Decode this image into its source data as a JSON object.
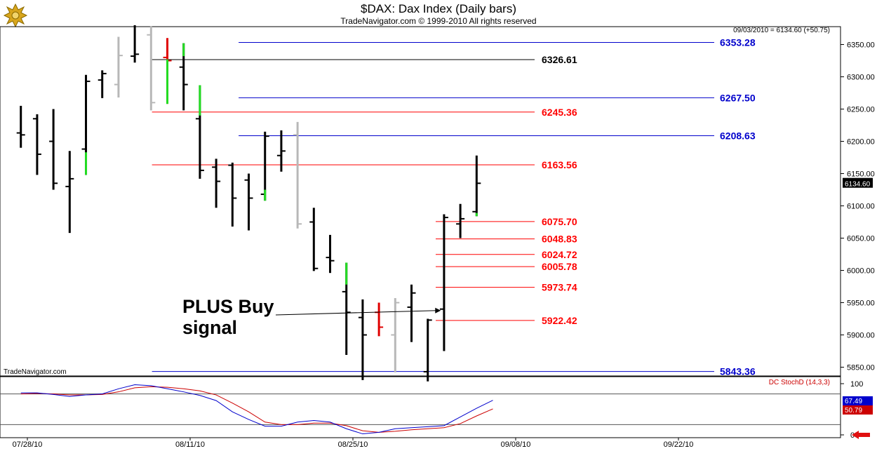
{
  "chart_data": {
    "type": "ohlc",
    "title": "$DAX:  Dax Index  (Daily bars)",
    "subtitle": "TradeNavigator.com © 1999-2010 All rights reserved",
    "last_quote": "09/03/2010 = 6134.60 (+50.75)",
    "watermark": "TradeNavigator.com",
    "current_price": 6134.6,
    "current_price_label": "6134.60",
    "y_axis": {
      "ticks": [
        5850,
        5900,
        5950,
        6000,
        6050,
        6100,
        6150,
        6200,
        6250,
        6300,
        6350
      ],
      "tick_labels": [
        "5850.00",
        "5900.00",
        "5950.00",
        "6000.00",
        "6050.00",
        "6100.00",
        "6150.00",
        "6200.00",
        "6250.00",
        "6300.00",
        "6350.00"
      ],
      "ylim": [
        5825,
        6378
      ]
    },
    "x_axis": {
      "tick_labels": [
        "07/28/10",
        "08/11/10",
        "08/25/10",
        "09/08/10",
        "09/22/10"
      ],
      "tick_bar_index": [
        0,
        10,
        20,
        30,
        40
      ]
    },
    "bars": [
      {
        "i": -0.4,
        "o": 6213,
        "h": 6255,
        "l": 6190,
        "c": 6210,
        "color": "black"
      },
      {
        "i": 0.6,
        "o": 6235,
        "h": 6242,
        "l": 6148,
        "c": 6180,
        "color": "black"
      },
      {
        "i": 1.6,
        "o": 6200,
        "h": 6250,
        "l": 6125,
        "c": 6135,
        "color": "black"
      },
      {
        "i": 2.6,
        "o": 6130,
        "h": 6185,
        "l": 6058,
        "c": 6142,
        "color": "black"
      },
      {
        "i": 3.6,
        "o": 6188,
        "h": 6303,
        "l": 6148,
        "c": 6293,
        "color": "black",
        "green_lower": [
          6148,
          6183
        ]
      },
      {
        "i": 4.6,
        "o": 6295,
        "h": 6310,
        "l": 6267,
        "c": 6305,
        "color": "black"
      },
      {
        "i": 5.6,
        "o": 6288,
        "h": 6362,
        "l": 6268,
        "c": 6333,
        "color": "gray"
      },
      {
        "i": 6.6,
        "o": 6332,
        "h": 6380,
        "l": 6322,
        "c": 6335,
        "color": "black"
      },
      {
        "i": 7.6,
        "o": 6365,
        "h": 6378,
        "l": 6248,
        "c": 6260,
        "color": "gray"
      },
      {
        "i": 8.6,
        "o": 6330,
        "h": 6360,
        "l": 6258,
        "c": 6325,
        "color": "red",
        "green_lower": [
          6258,
          6327
        ]
      },
      {
        "i": 9.6,
        "o": 6315,
        "h": 6352,
        "l": 6248,
        "c": 6288,
        "color": "black",
        "green_upper": [
          6332,
          6352
        ]
      },
      {
        "i": 10.6,
        "o": 6235,
        "h": 6287,
        "l": 6142,
        "c": 6155,
        "color": "black",
        "green_upper": [
          6240,
          6287
        ]
      },
      {
        "i": 11.6,
        "o": 6160,
        "h": 6173,
        "l": 6097,
        "c": 6138,
        "color": "black"
      },
      {
        "i": 12.6,
        "o": 6163,
        "h": 6167,
        "l": 6068,
        "c": 6112,
        "color": "black"
      },
      {
        "i": 13.6,
        "o": 6140,
        "h": 6150,
        "l": 6062,
        "c": 6112,
        "color": "black"
      },
      {
        "i": 14.6,
        "o": 6118,
        "h": 6215,
        "l": 6108,
        "c": 6208,
        "color": "black",
        "green_lower": [
          6108,
          6125
        ]
      },
      {
        "i": 15.6,
        "o": 6178,
        "h": 6217,
        "l": 6153,
        "c": 6185,
        "color": "black"
      },
      {
        "i": 16.6,
        "o": 6210,
        "h": 6230,
        "l": 6065,
        "c": 6072,
        "color": "gray"
      },
      {
        "i": 17.6,
        "o": 6075,
        "h": 6097,
        "l": 5999,
        "c": 6003,
        "color": "black"
      },
      {
        "i": 18.6,
        "o": 6020,
        "h": 6055,
        "l": 5996,
        "c": 6015,
        "color": "black"
      },
      {
        "i": 19.6,
        "o": 5967,
        "h": 6012,
        "l": 5869,
        "c": 5935,
        "color": "black",
        "green_upper": [
          5978,
          6012
        ]
      },
      {
        "i": 20.6,
        "o": 5927,
        "h": 5955,
        "l": 5830,
        "c": 5900,
        "color": "black"
      },
      {
        "i": 21.6,
        "o": 5935,
        "h": 5950,
        "l": 5898,
        "c": 5912,
        "color": "red"
      },
      {
        "i": 22.6,
        "o": 5900,
        "h": 5957,
        "l": 5842,
        "c": 5950,
        "color": "gray"
      },
      {
        "i": 23.6,
        "o": 5943,
        "h": 5978,
        "l": 5889,
        "c": 5965,
        "color": "black"
      },
      {
        "i": 24.6,
        "o": 5843,
        "h": 5925,
        "l": 5828,
        "c": 5923,
        "color": "black"
      },
      {
        "i": 25.6,
        "o": 5940,
        "h": 6087,
        "l": 5875,
        "c": 6082,
        "color": "black"
      },
      {
        "i": 26.6,
        "o": 6072,
        "h": 6103,
        "l": 6050,
        "c": 6080,
        "color": "black"
      },
      {
        "i": 27.6,
        "o": 6091,
        "h": 6178,
        "l": 6084,
        "c": 6135,
        "color": "black",
        "green_lower": [
          6084,
          6089
        ]
      }
    ],
    "levels": [
      {
        "value": 6353.28,
        "label": "6353.28",
        "color": "#0000cc",
        "start": 13,
        "text_side": "right"
      },
      {
        "value": 6326.61,
        "label": "6326.61",
        "color": "#000000",
        "start": 8,
        "text_side": "mid"
      },
      {
        "value": 6267.5,
        "label": "6267.50",
        "color": "#0000cc",
        "start": 13,
        "text_side": "right"
      },
      {
        "value": 6245.36,
        "label": "6245.36",
        "color": "#ff0000",
        "start": 8,
        "text_side": "mid"
      },
      {
        "value": 6208.63,
        "label": "6208.63",
        "color": "#0000cc",
        "start": 13,
        "text_side": "right"
      },
      {
        "value": 6163.56,
        "label": "6163.56",
        "color": "#ff0000",
        "start": 8,
        "text_side": "mid"
      },
      {
        "value": 6075.7,
        "label": "6075.70",
        "color": "#ff0000",
        "start": 25,
        "text_side": "mid"
      },
      {
        "value": 6048.83,
        "label": "6048.83",
        "color": "#ff0000",
        "start": 25,
        "text_side": "mid"
      },
      {
        "value": 6024.72,
        "label": "6024.72",
        "color": "#ff0000",
        "start": 25,
        "text_side": "mid"
      },
      {
        "value": 6005.78,
        "label": "6005.78",
        "color": "#ff0000",
        "start": 25,
        "text_side": "mid"
      },
      {
        "value": 5973.74,
        "label": "5973.74",
        "color": "#ff0000",
        "start": 25,
        "text_side": "mid"
      },
      {
        "value": 5922.42,
        "label": "5922.42",
        "color": "#ff0000",
        "start": 25,
        "text_side": "mid"
      },
      {
        "value": 5843.36,
        "label": "5843.36",
        "color": "#0000cc",
        "start": 8,
        "text_side": "right"
      }
    ],
    "annotation": {
      "lines": [
        "PLUS Buy",
        "signal"
      ],
      "arrow_from": {
        "i": 12.9,
        "v": 5922
      },
      "arrow_to": {
        "i": 25.4,
        "v": 5940
      }
    },
    "stochastic": {
      "name": "DC StochD (14,3,3)",
      "ylim": [
        0,
        110
      ],
      "ticks": [
        0,
        100
      ],
      "tick_labels": [
        "0",
        "100"
      ],
      "ref_lines": [
        80,
        20
      ],
      "value_k": 67.49,
      "value_k_label": "67.49",
      "value_d": 50.79,
      "value_d_label": "50.79",
      "k_color": "#0000cc",
      "d_color": "#cc0000",
      "k": [
        [
          -0.4,
          82
        ],
        [
          0.6,
          82
        ],
        [
          1.6,
          79
        ],
        [
          2.6,
          75
        ],
        [
          3.6,
          78
        ],
        [
          4.6,
          80
        ],
        [
          5.6,
          90
        ],
        [
          6.6,
          98
        ],
        [
          7.6,
          96
        ],
        [
          8.6,
          90
        ],
        [
          9.6,
          84
        ],
        [
          10.6,
          77
        ],
        [
          11.6,
          67
        ],
        [
          12.6,
          45
        ],
        [
          13.6,
          30
        ],
        [
          14.6,
          17
        ],
        [
          15.6,
          17
        ],
        [
          16.6,
          25
        ],
        [
          17.6,
          28
        ],
        [
          18.6,
          25
        ],
        [
          19.6,
          12
        ],
        [
          20.6,
          2
        ],
        [
          21.6,
          5
        ],
        [
          22.6,
          12
        ],
        [
          23.6,
          14
        ],
        [
          24.6,
          16
        ],
        [
          25.6,
          18
        ],
        [
          26.6,
          35
        ],
        [
          27.6,
          52
        ],
        [
          28.6,
          67.5
        ]
      ],
      "d": [
        [
          -0.4,
          80
        ],
        [
          0.6,
          81
        ],
        [
          1.6,
          80
        ],
        [
          2.6,
          78
        ],
        [
          3.6,
          78
        ],
        [
          4.6,
          79
        ],
        [
          5.6,
          84
        ],
        [
          6.6,
          92
        ],
        [
          7.6,
          94
        ],
        [
          8.6,
          93
        ],
        [
          9.6,
          90
        ],
        [
          10.6,
          86
        ],
        [
          11.6,
          78
        ],
        [
          12.6,
          62
        ],
        [
          13.6,
          45
        ],
        [
          14.6,
          25
        ],
        [
          15.6,
          20
        ],
        [
          16.6,
          20
        ],
        [
          17.6,
          23
        ],
        [
          18.6,
          23
        ],
        [
          19.6,
          18
        ],
        [
          20.6,
          8
        ],
        [
          21.6,
          5
        ],
        [
          22.6,
          7
        ],
        [
          23.6,
          10
        ],
        [
          24.6,
          12
        ],
        [
          25.6,
          14
        ],
        [
          26.6,
          22
        ],
        [
          27.6,
          37
        ],
        [
          28.6,
          50.8
        ]
      ]
    }
  }
}
